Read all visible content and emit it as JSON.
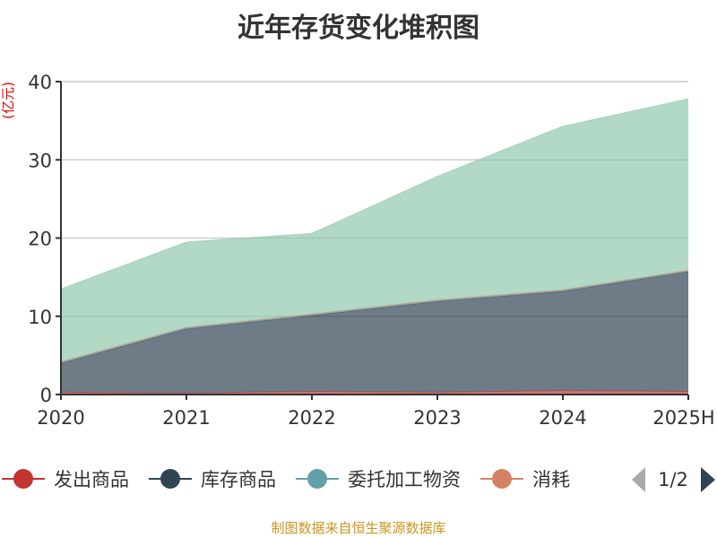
{
  "title": "近年存货变化堆积图",
  "source": "制图数据来自恒生聚源数据库",
  "chart_data": {
    "type": "area",
    "stacked": true,
    "title": "近年存货变化堆积图",
    "ylabel": "(亿元)",
    "ylim": [
      0,
      40
    ],
    "yticks": [
      "0",
      "10",
      "20",
      "30",
      "40"
    ],
    "categories": [
      "2020",
      "2021",
      "2022",
      "2023",
      "2024",
      "2025H"
    ],
    "grid": true,
    "legend_placement": "bottom",
    "legend_page": "1/2",
    "series": [
      {
        "name": "发出商品",
        "color": "#c23531",
        "values": [
          0.3,
          0.2,
          0.4,
          0.3,
          0.5,
          0.4
        ]
      },
      {
        "name": "库存商品",
        "color": "#2f4554",
        "values": [
          3.7,
          8.2,
          9.7,
          11.6,
          12.7,
          15.3
        ]
      },
      {
        "name": "委托加工物资",
        "color": "#61a0a8",
        "values": [
          0.1,
          0.1,
          0.1,
          0.1,
          0.1,
          0.1
        ]
      },
      {
        "name": "消耗",
        "color": "#d48265",
        "values": [
          0.1,
          0.1,
          0.1,
          0.1,
          0.1,
          0.1
        ]
      },
      {
        "color": "#91c7ae",
        "values": [
          9.3,
          10.9,
          10.3,
          15.8,
          20.9,
          21.9
        ]
      }
    ]
  }
}
